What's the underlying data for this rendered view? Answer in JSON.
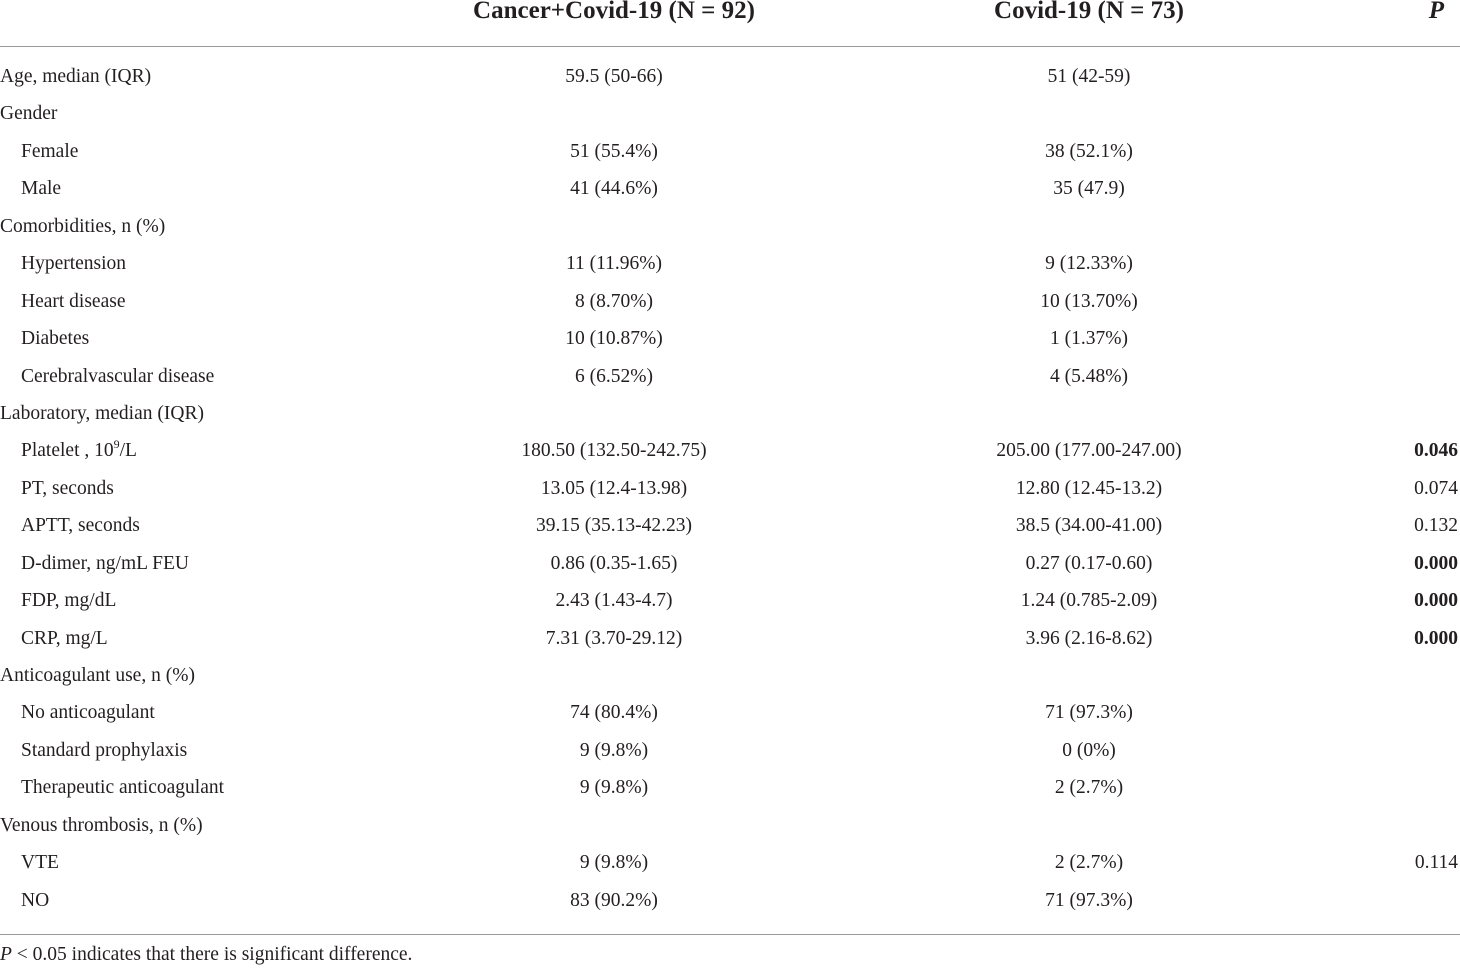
{
  "table": {
    "headers": {
      "col1": "Cancer+Covid-19 (N = 92)",
      "col2": "Covid-19 (N = 73)",
      "col3": "P"
    },
    "rows": [
      {
        "label": "Age, median  (IQR)",
        "indent": false,
        "c1": "59.5 (50-66)",
        "c2": "51 (42-59)",
        "p": "",
        "p_bold": false
      },
      {
        "label": "Gender",
        "indent": false,
        "c1": "",
        "c2": "",
        "p": "",
        "p_bold": false
      },
      {
        "label": "Female",
        "indent": true,
        "c1": "51 (55.4%)",
        "c2": "38 (52.1%)",
        "p": "",
        "p_bold": false
      },
      {
        "label": "Male",
        "indent": true,
        "c1": "41 (44.6%)",
        "c2": "35 (47.9)",
        "p": "",
        "p_bold": false
      },
      {
        "label": "Comorbidities, n (%)",
        "indent": false,
        "c1": "",
        "c2": "",
        "p": "",
        "p_bold": false
      },
      {
        "label": "Hypertension",
        "indent": true,
        "c1": "11 (11.96%)",
        "c2": "9 (12.33%)",
        "p": "",
        "p_bold": false
      },
      {
        "label": "Heart disease",
        "indent": true,
        "c1": "8 (8.70%)",
        "c2": "10 (13.70%)",
        "p": "",
        "p_bold": false
      },
      {
        "label": "Diabetes",
        "indent": true,
        "c1": "10 (10.87%)",
        "c2": "1 (1.37%)",
        "p": "",
        "p_bold": false
      },
      {
        "label": "Cerebralvascular disease",
        "indent": true,
        "c1": "6 (6.52%)",
        "c2": "4 (5.48%)",
        "p": "",
        "p_bold": false
      },
      {
        "label": "Laboratory, median  (IQR)",
        "indent": false,
        "c1": "",
        "c2": "",
        "p": "",
        "p_bold": false
      },
      {
        "label": "Platelet , 10",
        "label_sup": "9",
        "label_after": "/L",
        "indent": true,
        "c1": "180.50 (132.50-242.75)",
        "c2": "205.00 (177.00-247.00)",
        "p": "0.046",
        "p_bold": true
      },
      {
        "label": "PT, seconds",
        "indent": true,
        "c1": "13.05 (12.4-13.98)",
        "c2": "12.80 (12.45-13.2)",
        "p": "0.074",
        "p_bold": false
      },
      {
        "label": "APTT, seconds",
        "indent": true,
        "c1": "39.15 (35.13-42.23)",
        "c2": "38.5 (34.00-41.00)",
        "p": "0.132",
        "p_bold": false
      },
      {
        "label": "D-dimer, ng/mL FEU",
        "indent": true,
        "c1": "0.86 (0.35-1.65)",
        "c2": "0.27 (0.17-0.60)",
        "p": "0.000",
        "p_bold": true
      },
      {
        "label": "FDP, mg/dL",
        "indent": true,
        "c1": "2.43 (1.43-4.7)",
        "c2": "1.24 (0.785-2.09)",
        "p": "0.000",
        "p_bold": true
      },
      {
        "label": "CRP, mg/L",
        "indent": true,
        "c1": "7.31 (3.70-29.12)",
        "c2": "3.96 (2.16-8.62)",
        "p": "0.000",
        "p_bold": true
      },
      {
        "label": "Anticoagulant use, n  (%)",
        "indent": false,
        "c1": "",
        "c2": "",
        "p": "",
        "p_bold": false
      },
      {
        "label": "No anticoagulant",
        "indent": true,
        "c1": "74 (80.4%)",
        "c2": "71 (97.3%)",
        "p": "",
        "p_bold": false
      },
      {
        "label": "Standard prophylaxis",
        "indent": true,
        "c1": "9 (9.8%)",
        "c2": "0 (0%)",
        "p": "",
        "p_bold": false
      },
      {
        "label": "Therapeutic anticoagulant",
        "indent": true,
        "c1": "9 (9.8%)",
        "c2": "2 (2.7%)",
        "p": "",
        "p_bold": false
      },
      {
        "label": "Venous thrombosis, n  (%)",
        "indent": false,
        "c1": "",
        "c2": "",
        "p": "",
        "p_bold": false
      },
      {
        "label": "VTE",
        "indent": true,
        "c1": "9 (9.8%)",
        "c2": "2 (2.7%)",
        "p": "0.114",
        "p_bold": false
      },
      {
        "label": "NO",
        "indent": true,
        "c1": "83 (90.2%)",
        "c2": "71 (97.3%)",
        "p": "",
        "p_bold": false
      }
    ]
  },
  "footnote": {
    "p_symbol": "P",
    "text": " < 0.05 indicates that there is significant difference."
  }
}
